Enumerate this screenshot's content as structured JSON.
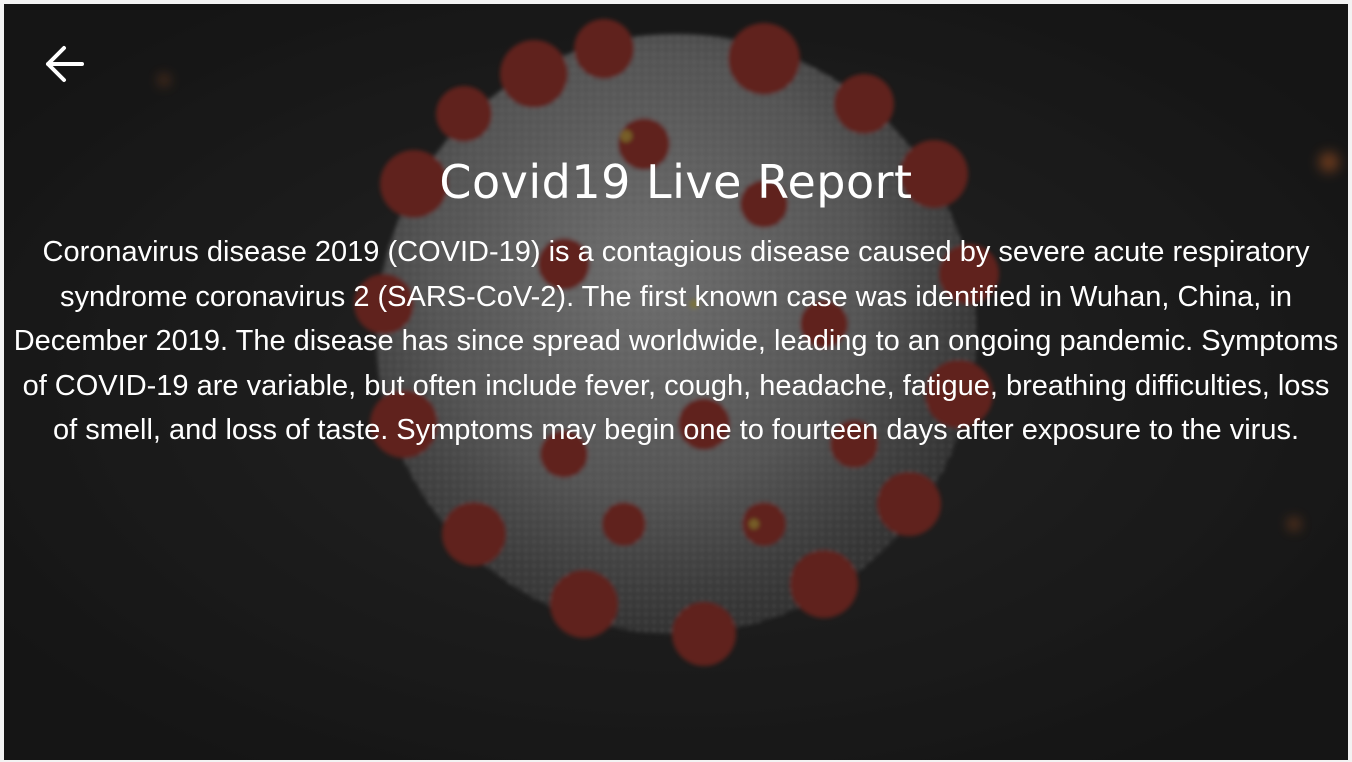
{
  "header": {
    "back_icon": "arrow-left-icon"
  },
  "hero": {
    "background": "coronavirus-illustration",
    "title": "Covid19 Live Report",
    "description": "Coronavirus disease 2019 (COVID-19) is a contagious disease caused by severe acute respiratory syndrome coronavirus 2 (SARS-CoV-2). The first known case was identified in Wuhan, China, in December 2019. The disease has since spread worldwide, leading to an ongoing pandemic. Symptoms of COVID-19 are variable, but often include fever, cough, headache, fatigue, breathing difficulties, loss of smell, and loss of taste. Symptoms may begin one to fourteen days after exposure to the virus."
  },
  "colors": {
    "text": "#ffffff",
    "background": "#1b1b1b",
    "virus_spike": "#8e2a22",
    "virus_body": "#8a8a8a"
  }
}
